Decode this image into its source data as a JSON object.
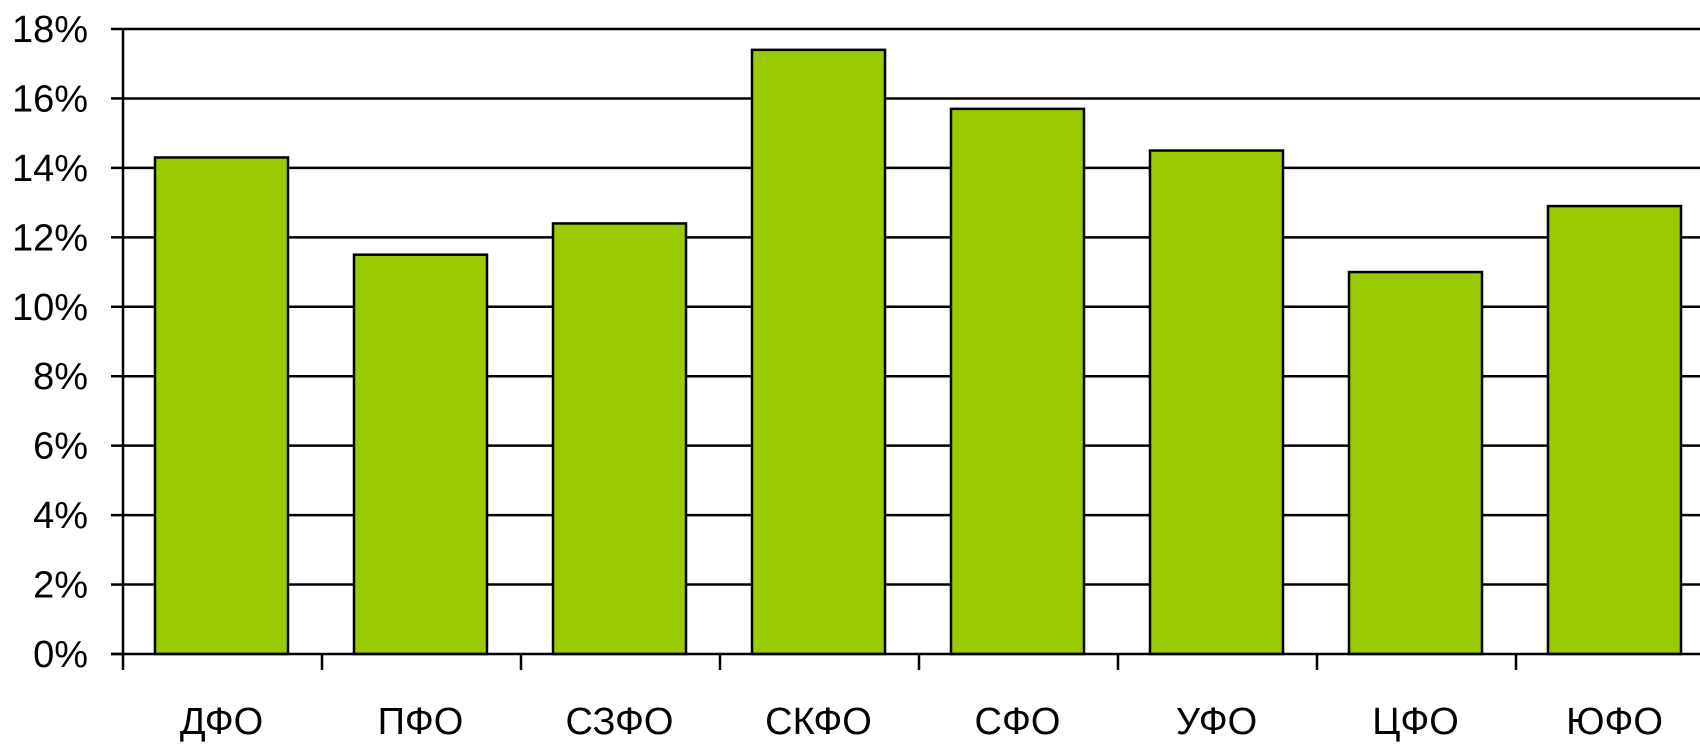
{
  "chart_data": {
    "type": "bar",
    "categories": [
      "ДФО",
      "ПФО",
      "СЗФО",
      "СКФО",
      "СФО",
      "УФО",
      "ЦФО",
      "ЮФО"
    ],
    "values": [
      14.3,
      11.5,
      12.4,
      17.4,
      15.7,
      14.5,
      11.0,
      12.9
    ],
    "title": "",
    "xlabel": "",
    "ylabel": "",
    "ylim": [
      0,
      18
    ],
    "yticks": [
      0,
      2,
      4,
      6,
      8,
      10,
      12,
      14,
      16,
      18
    ],
    "ytick_labels": [
      "0%",
      "2%",
      "4%",
      "6%",
      "8%",
      "10%",
      "12%",
      "14%",
      "16%",
      "18%"
    ],
    "grid": true,
    "legend": "none",
    "bar_color": "#99CC00",
    "edge_color": "#000000"
  }
}
